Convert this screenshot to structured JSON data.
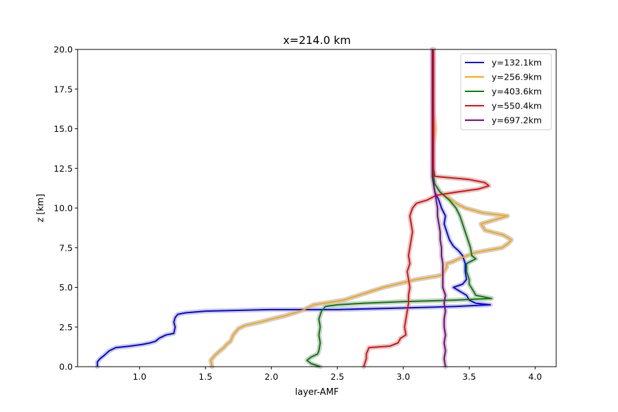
{
  "chart_data": {
    "type": "line",
    "title": "x=214.0 km",
    "xlabel": "layer-AMF",
    "ylabel": "z [km]",
    "xlim": [
      0.53,
      4.16
    ],
    "ylim": [
      0,
      20
    ],
    "xticks": [
      1.0,
      1.5,
      2.0,
      2.5,
      3.0,
      3.5,
      4.0
    ],
    "xtick_labels": [
      "1.0",
      "1.5",
      "2.0",
      "2.5",
      "3.0",
      "3.5",
      "4.0"
    ],
    "yticks": [
      0,
      2.5,
      5,
      7.5,
      10,
      12.5,
      15,
      17.5,
      20
    ],
    "ytick_labels": [
      "0.0",
      "2.5",
      "5.0",
      "7.5",
      "10.0",
      "12.5",
      "15.0",
      "17.5",
      "20.0"
    ],
    "grid": false,
    "legend_position": "upper right",
    "band_color": "#c8c8c8",
    "series": [
      {
        "name": "y=132.1km",
        "color": "#0000ff",
        "points": [
          [
            0.68,
            0
          ],
          [
            0.68,
            0.3
          ],
          [
            0.7,
            0.5
          ],
          [
            0.73,
            0.7
          ],
          [
            0.77,
            1.0
          ],
          [
            0.82,
            1.2
          ],
          [
            0.93,
            1.3
          ],
          [
            1.02,
            1.4
          ],
          [
            1.08,
            1.5
          ],
          [
            1.12,
            1.6
          ],
          [
            1.15,
            1.8
          ],
          [
            1.2,
            2.0
          ],
          [
            1.26,
            2.1
          ],
          [
            1.27,
            2.5
          ],
          [
            1.26,
            2.8
          ],
          [
            1.27,
            3.1
          ],
          [
            1.29,
            3.3
          ],
          [
            1.35,
            3.4
          ],
          [
            1.5,
            3.5
          ],
          [
            2.0,
            3.6
          ],
          [
            2.5,
            3.6
          ],
          [
            3.0,
            3.7
          ],
          [
            3.4,
            3.8
          ],
          [
            3.66,
            3.9
          ],
          [
            3.55,
            4.0
          ],
          [
            3.5,
            4.2
          ],
          [
            3.48,
            4.5
          ],
          [
            3.42,
            4.8
          ],
          [
            3.38,
            5.0
          ],
          [
            3.45,
            5.2
          ],
          [
            3.48,
            5.5
          ],
          [
            3.47,
            6.0
          ],
          [
            3.47,
            6.5
          ],
          [
            3.45,
            7.0
          ],
          [
            3.42,
            7.3
          ],
          [
            3.38,
            7.6
          ],
          [
            3.35,
            8.0
          ],
          [
            3.33,
            8.5
          ],
          [
            3.31,
            9.0
          ],
          [
            3.32,
            9.5
          ],
          [
            3.29,
            10.0
          ],
          [
            3.27,
            10.5
          ],
          [
            3.24,
            11.0
          ],
          [
            3.23,
            11.5
          ],
          [
            3.22,
            12.0
          ],
          [
            3.22,
            13.0
          ],
          [
            3.22,
            14.0
          ],
          [
            3.22,
            15.0
          ],
          [
            3.22,
            16.0
          ],
          [
            3.22,
            17.0
          ],
          [
            3.22,
            18.0
          ],
          [
            3.22,
            19.0
          ],
          [
            3.22,
            20.0
          ]
        ]
      },
      {
        "name": "y=256.9km",
        "color": "#ffa500",
        "points": [
          [
            1.55,
            0
          ],
          [
            1.54,
            0.4
          ],
          [
            1.57,
            0.7
          ],
          [
            1.61,
            1.0
          ],
          [
            1.64,
            1.2
          ],
          [
            1.66,
            1.4
          ],
          [
            1.69,
            1.6
          ],
          [
            1.71,
            2.0
          ],
          [
            1.75,
            2.4
          ],
          [
            1.8,
            2.6
          ],
          [
            1.91,
            2.8
          ],
          [
            2.0,
            3.0
          ],
          [
            2.1,
            3.2
          ],
          [
            2.18,
            3.4
          ],
          [
            2.25,
            3.6
          ],
          [
            2.32,
            3.9
          ],
          [
            2.4,
            4.0
          ],
          [
            2.55,
            4.2
          ],
          [
            2.7,
            4.6
          ],
          [
            2.85,
            5.0
          ],
          [
            3.0,
            5.3
          ],
          [
            3.1,
            5.5
          ],
          [
            3.25,
            5.7
          ],
          [
            3.3,
            5.8
          ],
          [
            3.31,
            6.0
          ],
          [
            3.33,
            6.3
          ],
          [
            3.33,
            6.5
          ],
          [
            3.37,
            6.6
          ],
          [
            3.42,
            6.8
          ],
          [
            3.55,
            7.2
          ],
          [
            3.75,
            7.5
          ],
          [
            3.8,
            7.8
          ],
          [
            3.82,
            8.0
          ],
          [
            3.76,
            8.3
          ],
          [
            3.62,
            8.6
          ],
          [
            3.59,
            9.0
          ],
          [
            3.79,
            9.5
          ],
          [
            3.6,
            9.7
          ],
          [
            3.47,
            10.0
          ],
          [
            3.4,
            10.3
          ],
          [
            3.35,
            10.6
          ],
          [
            3.28,
            11.0
          ],
          [
            3.24,
            11.5
          ],
          [
            3.22,
            12.0
          ],
          [
            3.22,
            13.0
          ],
          [
            3.23,
            14.0
          ],
          [
            3.24,
            15.0
          ],
          [
            3.23,
            16.0
          ],
          [
            3.22,
            17.0
          ],
          [
            3.23,
            18.0
          ],
          [
            3.23,
            19.0
          ],
          [
            3.23,
            20.0
          ]
        ]
      },
      {
        "name": "y=403.6km",
        "color": "#008000",
        "points": [
          [
            2.37,
            0
          ],
          [
            2.3,
            0.2
          ],
          [
            2.27,
            0.4
          ],
          [
            2.3,
            0.6
          ],
          [
            2.35,
            0.8
          ],
          [
            2.36,
            1.0
          ],
          [
            2.37,
            1.5
          ],
          [
            2.36,
            2.0
          ],
          [
            2.37,
            2.5
          ],
          [
            2.36,
            3.0
          ],
          [
            2.38,
            3.5
          ],
          [
            2.41,
            3.8
          ],
          [
            2.5,
            3.9
          ],
          [
            2.7,
            4.0
          ],
          [
            3.0,
            4.1
          ],
          [
            3.4,
            4.2
          ],
          [
            3.67,
            4.3
          ],
          [
            3.55,
            4.5
          ],
          [
            3.53,
            4.8
          ],
          [
            3.5,
            5.2
          ],
          [
            3.5,
            5.5
          ],
          [
            3.48,
            6.0
          ],
          [
            3.48,
            6.5
          ],
          [
            3.55,
            6.8
          ],
          [
            3.52,
            7.0
          ],
          [
            3.51,
            7.5
          ],
          [
            3.49,
            8.0
          ],
          [
            3.47,
            8.5
          ],
          [
            3.45,
            9.0
          ],
          [
            3.43,
            9.5
          ],
          [
            3.4,
            10.0
          ],
          [
            3.35,
            10.5
          ],
          [
            3.28,
            11.0
          ],
          [
            3.24,
            11.5
          ],
          [
            3.23,
            12.0
          ],
          [
            3.23,
            13.0
          ],
          [
            3.23,
            14.0
          ],
          [
            3.23,
            15.0
          ],
          [
            3.23,
            16.0
          ],
          [
            3.23,
            17.0
          ],
          [
            3.23,
            18.0
          ],
          [
            3.23,
            19.0
          ],
          [
            3.23,
            20.0
          ]
        ]
      },
      {
        "name": "y=550.4km",
        "color": "#ff0000",
        "points": [
          [
            2.7,
            0
          ],
          [
            2.72,
            0.5
          ],
          [
            2.72,
            0.8
          ],
          [
            2.74,
            1.2
          ],
          [
            2.9,
            1.3
          ],
          [
            2.96,
            1.5
          ],
          [
            2.98,
            1.8
          ],
          [
            3.02,
            2.0
          ],
          [
            3.01,
            2.5
          ],
          [
            3.02,
            3.0
          ],
          [
            3.03,
            3.5
          ],
          [
            3.04,
            4.0
          ],
          [
            3.04,
            4.5
          ],
          [
            3.05,
            5.0
          ],
          [
            3.04,
            5.5
          ],
          [
            3.03,
            6.0
          ],
          [
            3.05,
            6.5
          ],
          [
            3.04,
            7.0
          ],
          [
            3.05,
            7.5
          ],
          [
            3.06,
            8.0
          ],
          [
            3.07,
            8.5
          ],
          [
            3.06,
            9.0
          ],
          [
            3.05,
            9.5
          ],
          [
            3.07,
            10.0
          ],
          [
            3.1,
            10.3
          ],
          [
            3.18,
            10.5
          ],
          [
            3.25,
            10.8
          ],
          [
            3.4,
            11.0
          ],
          [
            3.57,
            11.2
          ],
          [
            3.65,
            11.4
          ],
          [
            3.62,
            11.6
          ],
          [
            3.5,
            11.8
          ],
          [
            3.24,
            12.0
          ],
          [
            3.23,
            12.5
          ],
          [
            3.23,
            13.0
          ],
          [
            3.23,
            14.0
          ],
          [
            3.23,
            15.0
          ],
          [
            3.23,
            16.0
          ],
          [
            3.23,
            17.0
          ],
          [
            3.23,
            18.0
          ],
          [
            3.23,
            19.0
          ],
          [
            3.23,
            20.0
          ]
        ]
      },
      {
        "name": "y=697.2km",
        "color": "#800080",
        "points": [
          [
            3.32,
            0
          ],
          [
            3.31,
            0.5
          ],
          [
            3.32,
            1.0
          ],
          [
            3.31,
            1.5
          ],
          [
            3.32,
            2.0
          ],
          [
            3.31,
            2.5
          ],
          [
            3.31,
            3.0
          ],
          [
            3.32,
            3.5
          ],
          [
            3.31,
            4.0
          ],
          [
            3.32,
            4.5
          ],
          [
            3.3,
            5.0
          ],
          [
            3.3,
            5.5
          ],
          [
            3.3,
            6.0
          ],
          [
            3.3,
            6.5
          ],
          [
            3.29,
            7.0
          ],
          [
            3.29,
            7.5
          ],
          [
            3.28,
            8.0
          ],
          [
            3.28,
            8.5
          ],
          [
            3.27,
            9.0
          ],
          [
            3.26,
            9.5
          ],
          [
            3.26,
            10.0
          ],
          [
            3.25,
            10.5
          ],
          [
            3.24,
            11.0
          ],
          [
            3.23,
            11.5
          ],
          [
            3.22,
            12.0
          ],
          [
            3.22,
            13.0
          ],
          [
            3.22,
            14.0
          ],
          [
            3.22,
            15.0
          ],
          [
            3.22,
            16.0
          ],
          [
            3.22,
            17.0
          ],
          [
            3.22,
            18.0
          ],
          [
            3.22,
            19.0
          ],
          [
            3.22,
            20.0
          ]
        ]
      }
    ]
  }
}
